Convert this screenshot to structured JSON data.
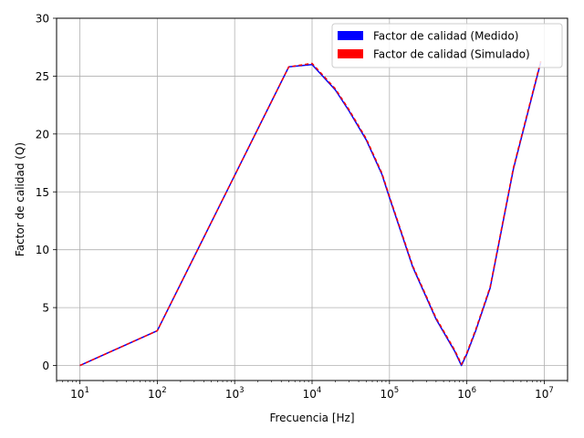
{
  "chart_data": {
    "type": "line",
    "title": "",
    "xlabel": "Frecuencia [Hz]",
    "ylabel": "Factor de calidad (Q)",
    "xscale": "log",
    "xlim": [
      5,
      20000000
    ],
    "ylim": [
      -1.3,
      30
    ],
    "grid": true,
    "legend_position": "top-right",
    "x_ticks": [
      {
        "value": 10,
        "base": "10",
        "exp": "1"
      },
      {
        "value": 100,
        "base": "10",
        "exp": "2"
      },
      {
        "value": 1000,
        "base": "10",
        "exp": "3"
      },
      {
        "value": 10000,
        "base": "10",
        "exp": "4"
      },
      {
        "value": 100000,
        "base": "10",
        "exp": "5"
      },
      {
        "value": 1000000,
        "base": "10",
        "exp": "6"
      },
      {
        "value": 10000000,
        "base": "10",
        "exp": "7"
      }
    ],
    "y_ticks": [
      {
        "value": 0,
        "label": "0"
      },
      {
        "value": 5,
        "label": "5"
      },
      {
        "value": 10,
        "label": "10"
      },
      {
        "value": 15,
        "label": "15"
      },
      {
        "value": 20,
        "label": "20"
      },
      {
        "value": 25,
        "label": "25"
      },
      {
        "value": 30,
        "label": "30"
      }
    ],
    "series": [
      {
        "name": "Factor de calidad (Medido)",
        "color": "#0000ff",
        "style": "solid",
        "x": [
          10,
          100,
          5000,
          10000,
          20000,
          30000,
          50000,
          80000,
          100000,
          200000,
          400000,
          700000,
          850000,
          1000000,
          1300000,
          2000000,
          4000000,
          9000000
        ],
        "y": [
          0,
          3.0,
          25.8,
          26.0,
          23.8,
          22.0,
          19.5,
          16.5,
          14.5,
          8.5,
          4.0,
          1.2,
          0,
          1.0,
          3.0,
          6.7,
          17.0,
          26.2
        ]
      },
      {
        "name": "Factor de calidad (Simulado)",
        "color": "#ff0000",
        "style": "dashed",
        "x": [
          10,
          100,
          5000,
          10000,
          20000,
          30000,
          50000,
          80000,
          100000,
          200000,
          400000,
          700000,
          850000,
          1000000,
          1300000,
          2000000,
          4000000,
          9000000
        ],
        "y": [
          0,
          3.0,
          25.8,
          26.1,
          23.9,
          22.1,
          19.6,
          16.6,
          14.6,
          8.6,
          4.1,
          1.3,
          0.1,
          1.1,
          3.1,
          6.8,
          17.1,
          26.3
        ]
      }
    ]
  }
}
